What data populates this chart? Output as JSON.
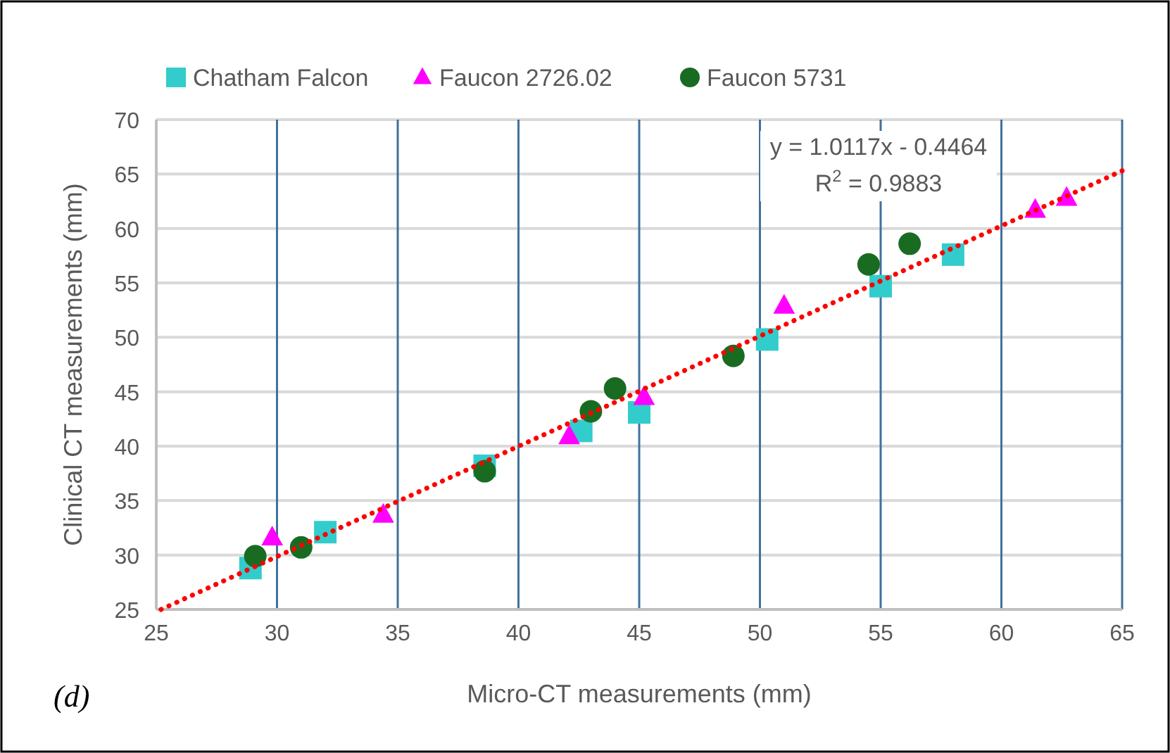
{
  "chart_data": {
    "type": "scatter",
    "xlabel": "Micro-CT measurements (mm)",
    "ylabel": "Clinical CT measurements (mm)",
    "xlim": [
      25,
      65
    ],
    "xticks": [
      25,
      30,
      35,
      40,
      45,
      50,
      55,
      60,
      65
    ],
    "ylim": [
      25,
      70
    ],
    "yticks": [
      25,
      30,
      35,
      40,
      45,
      50,
      55,
      60,
      65,
      70
    ],
    "grid": true,
    "legend": "top",
    "series": [
      {
        "name": "Chatham Falcon",
        "color": "#33cccc",
        "marker": "square",
        "x": [
          28.9,
          32.0,
          38.6,
          42.6,
          45.0,
          50.3,
          55.0,
          58.0
        ],
        "values": [
          28.8,
          32.1,
          38.2,
          41.4,
          43.1,
          49.8,
          54.7,
          57.6
        ]
      },
      {
        "name": "Faucon 2726.02",
        "color": "#ff00ff",
        "marker": "triangle",
        "x": [
          29.8,
          34.4,
          42.1,
          45.2,
          51.0,
          61.4,
          62.7
        ],
        "values": [
          31.6,
          33.7,
          40.9,
          44.5,
          52.9,
          61.7,
          62.8
        ]
      },
      {
        "name": "Faucon 5731",
        "color": "#1a6b22",
        "marker": "circle",
        "x": [
          29.1,
          31.0,
          38.6,
          43.0,
          44.0,
          48.9,
          54.5,
          56.2
        ],
        "values": [
          29.9,
          30.7,
          37.7,
          43.2,
          45.3,
          48.3,
          56.7,
          58.6
        ]
      },
      {
        "type": "line",
        "color": "#ff0000",
        "line_style": "dotted",
        "marker": "none",
        "x": [
          25.2,
          65
        ],
        "values": [
          25.0,
          65.3
        ]
      }
    ],
    "annotations": [
      "y = 1.0117x - 0.4464",
      "R$^{2}$ = 0.9883",
      "(d)"
    ]
  }
}
